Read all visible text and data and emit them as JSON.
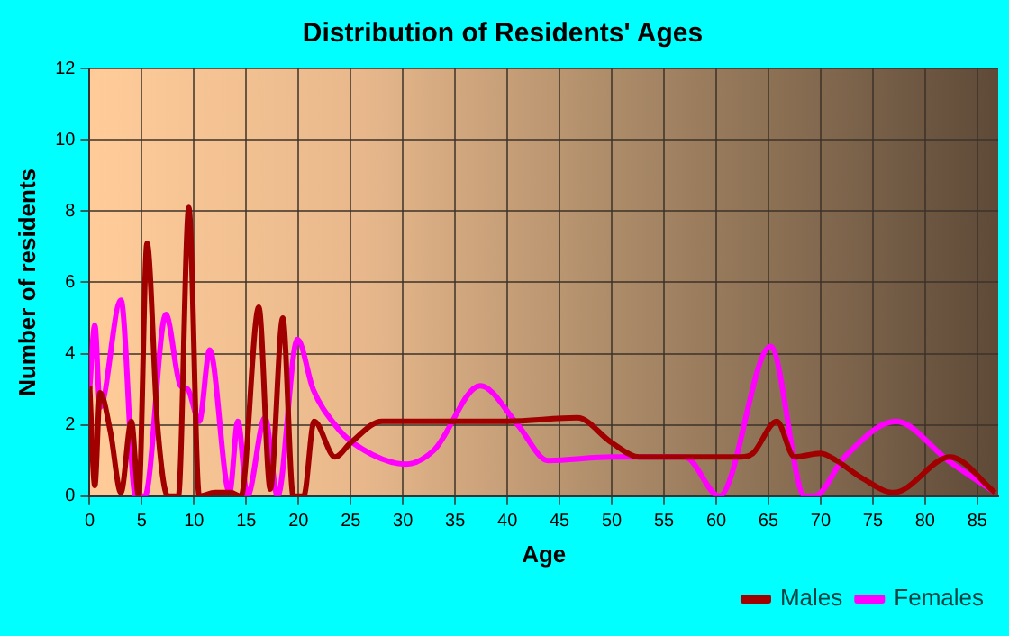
{
  "chart_data": {
    "type": "line",
    "title": "Distribution of Residents' Ages",
    "xlabel": "Age",
    "ylabel": "Number of residents",
    "xlim": [
      0,
      87
    ],
    "xticks": [
      0,
      5,
      10,
      15,
      20,
      25,
      30,
      35,
      40,
      45,
      50,
      55,
      60,
      65,
      70,
      75,
      80,
      85
    ],
    "ylim": [
      0,
      12
    ],
    "yticks": [
      0,
      2,
      4,
      6,
      8,
      10,
      12
    ],
    "grid": true,
    "legend": "bottom right",
    "marker": "none",
    "line_style": "solid",
    "series": [
      {
        "name": "Males",
        "color": "#a00000",
        "x": [
          0,
          0.5,
          1,
          2,
          3,
          4,
          4.7,
          5.5,
          6.5,
          7.5,
          8.5,
          9.5,
          10.5,
          12,
          13.5,
          14.5,
          16.2,
          17.3,
          18.5,
          19.5,
          20.5,
          21.5,
          23.5,
          25,
          28,
          35,
          40,
          46.7,
          50,
          52.6,
          57,
          62.4,
          63.5,
          65.8,
          67.5,
          70,
          71.5,
          74,
          77,
          82.4,
          86.7
        ],
        "values": [
          3.1,
          0.3,
          2.9,
          1.8,
          0.1,
          2.1,
          0,
          7.1,
          2,
          0,
          0,
          8.1,
          0,
          0.1,
          0.1,
          0,
          5.3,
          0.2,
          5,
          0,
          0,
          2.1,
          1.1,
          1.5,
          2.1,
          2.1,
          2.1,
          2.2,
          1.5,
          1.1,
          1.1,
          1.1,
          1.2,
          2.1,
          1.1,
          1.2,
          1,
          0.5,
          0.1,
          1.1,
          0.1
        ]
      },
      {
        "name": "Females",
        "color": "#ff00ff",
        "x": [
          0,
          0.5,
          1,
          3,
          4.4,
          5.3,
          7.3,
          8.7,
          9.4,
          10.5,
          11.5,
          13.4,
          14.2,
          15.1,
          16.8,
          18,
          19.9,
          21.4,
          23.5,
          25.2,
          30.3,
          33,
          37.4,
          41,
          43.9,
          50,
          57,
          60.3,
          65.2,
          68.5,
          69.4,
          72.3,
          77.2,
          82.2,
          86.7
        ],
        "values": [
          3,
          4.8,
          2.5,
          5.5,
          0,
          0,
          5.1,
          3.1,
          3,
          2.1,
          4.1,
          0.1,
          2.1,
          0,
          2.2,
          0,
          4.4,
          3,
          2,
          1.5,
          0.9,
          1.3,
          3.1,
          2,
          1,
          1.1,
          1.1,
          0,
          4.2,
          0,
          0,
          1.1,
          2.1,
          1,
          0.1
        ]
      }
    ]
  }
}
